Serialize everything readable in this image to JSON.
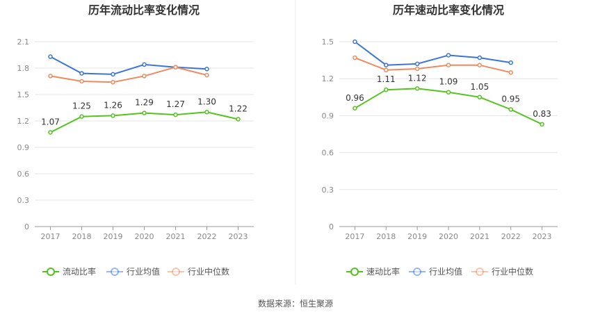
{
  "colors": {
    "own": "#52c41a",
    "avg": "#3b74d9",
    "median": "#f08a5d",
    "grid": "#e5e5e5",
    "axis": "#999999"
  },
  "source": "数据来源：恒生聚源",
  "chart_data": [
    {
      "type": "line",
      "title": "历年流动比率变化情况",
      "categories": [
        "2017",
        "2018",
        "2019",
        "2020",
        "2021",
        "2022",
        "2023"
      ],
      "ylim": [
        0,
        2.1
      ],
      "yticks": [
        "0",
        "0.3",
        "0.6",
        "0.9",
        "1.2",
        "1.5",
        "1.8",
        "2.1"
      ],
      "grid": true,
      "legend_position": "bottom",
      "series": [
        {
          "name": "流动比率",
          "key": "own",
          "values": [
            1.07,
            1.25,
            1.26,
            1.29,
            1.27,
            1.3,
            1.22
          ],
          "labels": [
            "1.07",
            "1.25",
            "1.26",
            "1.29",
            "1.27",
            "1.30",
            "1.22"
          ]
        },
        {
          "name": "行业均值",
          "key": "avg",
          "values": [
            1.93,
            1.74,
            1.73,
            1.84,
            1.81,
            1.79,
            null
          ]
        },
        {
          "name": "行业中位数",
          "key": "median",
          "values": [
            1.71,
            1.65,
            1.64,
            1.71,
            1.81,
            1.72,
            null
          ]
        }
      ]
    },
    {
      "type": "line",
      "title": "历年速动比率变化情况",
      "categories": [
        "2017",
        "2018",
        "2019",
        "2020",
        "2021",
        "2022",
        "2023"
      ],
      "ylim": [
        0,
        1.5
      ],
      "yticks": [
        "0",
        "0.3",
        "0.6",
        "0.9",
        "1.2",
        "1.5"
      ],
      "grid": true,
      "legend_position": "bottom",
      "series": [
        {
          "name": "速动比率",
          "key": "own",
          "values": [
            0.96,
            1.11,
            1.12,
            1.09,
            1.05,
            0.95,
            0.83
          ],
          "labels": [
            "0.96",
            "1.11",
            "1.12",
            "1.09",
            "1.05",
            "0.95",
            "0.83"
          ]
        },
        {
          "name": "行业均值",
          "key": "avg",
          "values": [
            1.5,
            1.31,
            1.32,
            1.39,
            1.37,
            1.33,
            null
          ]
        },
        {
          "name": "行业中位数",
          "key": "median",
          "values": [
            1.37,
            1.27,
            1.28,
            1.31,
            1.31,
            1.25,
            null
          ]
        }
      ]
    }
  ]
}
